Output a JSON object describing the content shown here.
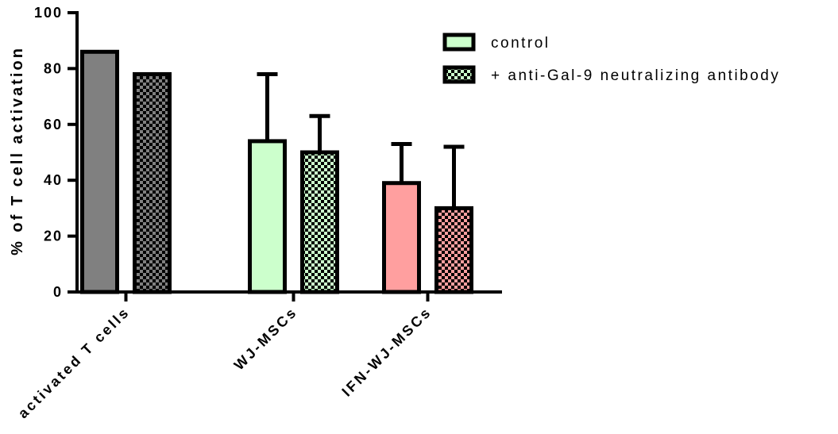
{
  "chart_data": {
    "type": "bar",
    "title": "",
    "xlabel": "",
    "ylabel": "% of T cell activation",
    "ylim": [
      0,
      100
    ],
    "yticks": [
      0,
      20,
      40,
      60,
      80,
      100
    ],
    "grid": false,
    "legend_position": "top-right",
    "categories": [
      "activated  T cells",
      "WJ-MSCs",
      "IFN-WJ-MSCs"
    ],
    "series": [
      {
        "name": "control",
        "pattern": "solid",
        "values": [
          86,
          54,
          39
        ],
        "error_upper": [
          null,
          78,
          53
        ],
        "colors": [
          "#808080",
          "#ccffcc",
          "#ff9f9f"
        ]
      },
      {
        "name": "+ anti-Gal-9 neutralizing antibody",
        "pattern": "checkered",
        "values": [
          78,
          50,
          30
        ],
        "error_upper": [
          null,
          63,
          52
        ],
        "colors": [
          "#808080",
          "#ccffcc",
          "#ff9f9f"
        ]
      }
    ],
    "legend": [
      {
        "label": "control",
        "pattern": "solid",
        "color": "#ccffcc"
      },
      {
        "label": "+ anti-Gal-9 neutralizing antibody",
        "pattern": "checkered",
        "color": "#ccffcc"
      }
    ]
  }
}
